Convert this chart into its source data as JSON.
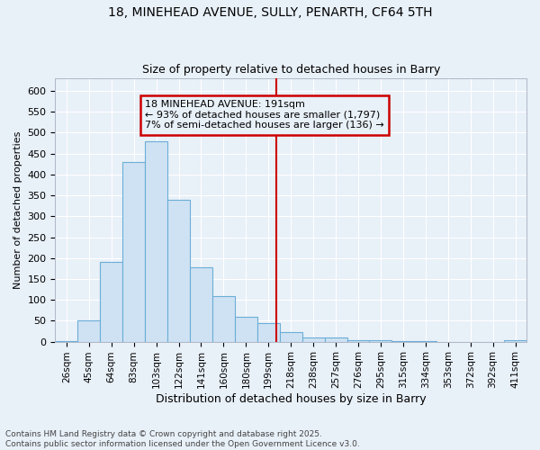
{
  "title_line1": "18, MINEHEAD AVENUE, SULLY, PENARTH, CF64 5TH",
  "title_line2": "Size of property relative to detached houses in Barry",
  "xlabel": "Distribution of detached houses by size in Barry",
  "ylabel": "Number of detached properties",
  "bar_color": "#cfe2f3",
  "bar_edge_color": "#6baed6",
  "categories": [
    "26sqm",
    "45sqm",
    "64sqm",
    "83sqm",
    "103sqm",
    "122sqm",
    "141sqm",
    "160sqm",
    "180sqm",
    "199sqm",
    "218sqm",
    "238sqm",
    "257sqm",
    "276sqm",
    "295sqm",
    "315sqm",
    "334sqm",
    "353sqm",
    "372sqm",
    "392sqm",
    "411sqm"
  ],
  "values": [
    2,
    50,
    190,
    430,
    480,
    340,
    178,
    110,
    60,
    45,
    23,
    10,
    10,
    4,
    3,
    2,
    1,
    0,
    0,
    0,
    3
  ],
  "ylim": [
    0,
    630
  ],
  "yticks": [
    0,
    50,
    100,
    150,
    200,
    250,
    300,
    350,
    400,
    450,
    500,
    550,
    600
  ],
  "vline_x": 9.35,
  "vline_color": "#cc0000",
  "annotation_text": "18 MINEHEAD AVENUE: 191sqm\n← 93% of detached houses are smaller (1,797)\n7% of semi-detached houses are larger (136) →",
  "annotation_box_edgecolor": "#cc0000",
  "background_color": "#e8f0f8",
  "grid_color": "#ffffff",
  "footer": "Contains HM Land Registry data © Crown copyright and database right 2025.\nContains public sector information licensed under the Open Government Licence v3.0."
}
